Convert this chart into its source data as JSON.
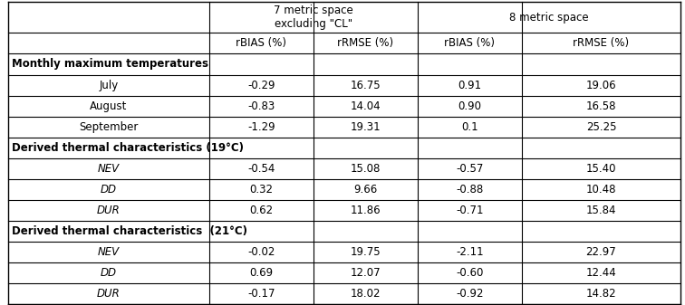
{
  "section1_header": "Monthly maximum temperatures",
  "section1_rows": [
    [
      "July",
      "-0.29",
      "16.75",
      "0.91",
      "19.06"
    ],
    [
      "August",
      "-0.83",
      "14.04",
      "0.90",
      "16.58"
    ],
    [
      "September",
      "-1.29",
      "19.31",
      "0.1",
      "25.25"
    ]
  ],
  "section2_header": "Derived thermal characteristics (19°C)",
  "section2_rows": [
    [
      "NEV",
      "-0.54",
      "15.08",
      "-0.57",
      "15.40"
    ],
    [
      "DD",
      "0.32",
      "9.66",
      "-0.88",
      "10.48"
    ],
    [
      "DUR",
      "0.62",
      "11.86",
      "-0.71",
      "15.84"
    ]
  ],
  "section3_header": "Derived thermal characteristics  (21°C)",
  "section3_rows": [
    [
      "NEV",
      "-0.02",
      "19.75",
      "-2.11",
      "22.97"
    ],
    [
      "DD",
      "0.69",
      "12.07",
      "-0.60",
      "12.44"
    ],
    [
      "DUR",
      "-0.17",
      "18.02",
      "-0.92",
      "14.82"
    ]
  ],
  "background_color": "#ffffff",
  "line_color": "#000000",
  "text_color": "#000000"
}
